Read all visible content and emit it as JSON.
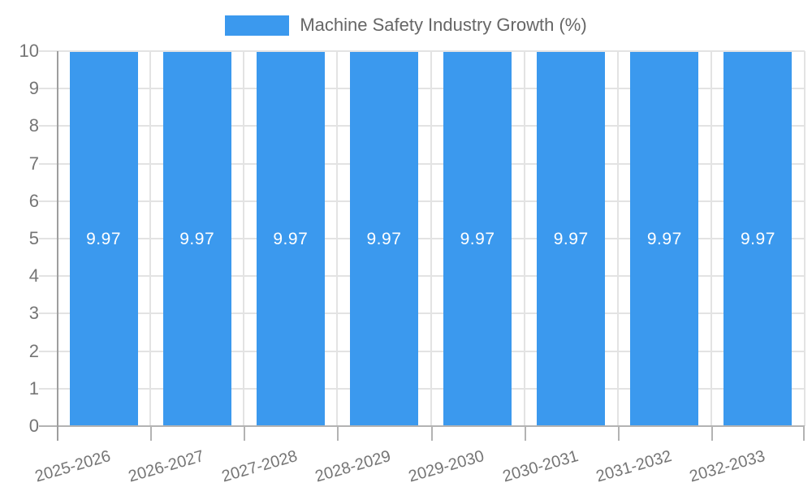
{
  "legend": {
    "label": "Machine Safety Industry Growth (%)"
  },
  "colors": {
    "bar": "#3b99ee",
    "grid": "#e3e3e3",
    "axis": "#9e9e9e",
    "baseline": "#b3b3b3",
    "axis_text": "#757575",
    "legend_text": "#666666",
    "value_text": "#ffffff",
    "background": "#ffffff"
  },
  "chart_data": {
    "type": "bar",
    "title": "Machine Safety Industry Growth (%)",
    "categories": [
      "2025-2026",
      "2026-2027",
      "2027-2028",
      "2028-2029",
      "2029-2030",
      "2030-2031",
      "2031-2032",
      "2032-2033"
    ],
    "values": [
      9.97,
      9.97,
      9.97,
      9.97,
      9.97,
      9.97,
      9.97,
      9.97
    ],
    "value_labels": [
      "9.97",
      "9.97",
      "9.97",
      "9.97",
      "9.97",
      "9.97",
      "9.97",
      "9.97"
    ],
    "xlabel": "",
    "ylabel": "",
    "ylim": [
      0,
      10
    ],
    "yticks": [
      0,
      1,
      2,
      3,
      4,
      5,
      6,
      7,
      8,
      9,
      10
    ],
    "grid": true,
    "legend_position": "top",
    "bar_label_position": "center",
    "x_label_rotation_deg": -16
  }
}
